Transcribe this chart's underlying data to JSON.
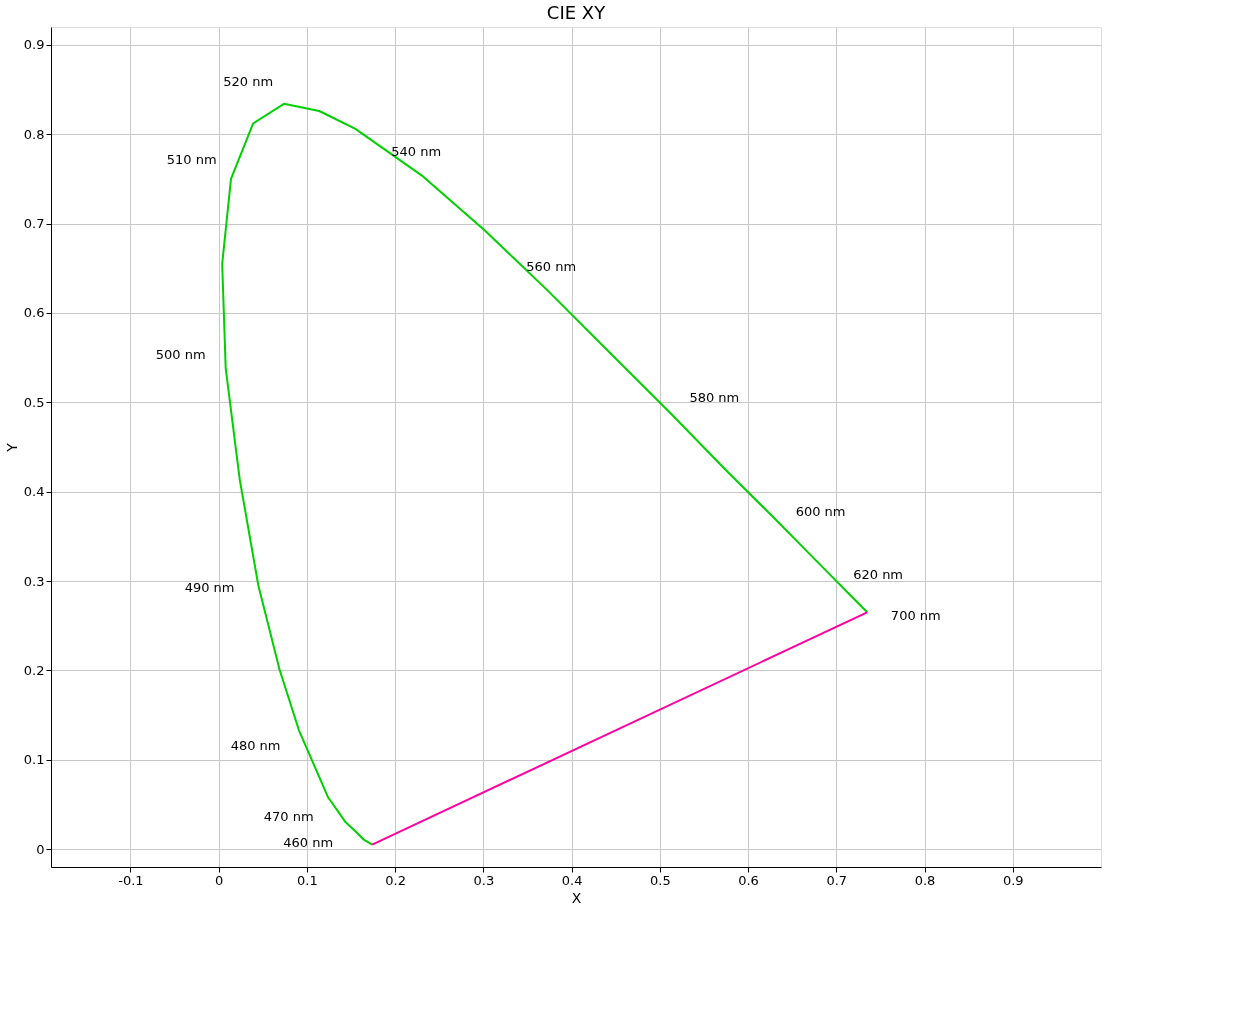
{
  "chart_data": {
    "type": "line",
    "title": "CIE XY",
    "xlabel": "X",
    "ylabel": "Y",
    "series": [
      {
        "color": "#00d000",
        "x": [
          0.174,
          0.164,
          0.157,
          0.144,
          0.124,
          0.091,
          0.069,
          0.045,
          0.024,
          0.008,
          0.004,
          0.014,
          0.039,
          0.074,
          0.114,
          0.155,
          0.23,
          0.302,
          0.373,
          0.444,
          0.513,
          0.575,
          0.627,
          0.666,
          0.692,
          0.719,
          0.735
        ],
        "values": [
          0.005,
          0.011,
          0.018,
          0.03,
          0.058,
          0.133,
          0.201,
          0.295,
          0.413,
          0.538,
          0.655,
          0.75,
          0.812,
          0.834,
          0.826,
          0.806,
          0.754,
          0.692,
          0.625,
          0.555,
          0.487,
          0.424,
          0.373,
          0.334,
          0.308,
          0.281,
          0.265
        ]
      },
      {
        "color": "#ff00a0",
        "x": [
          0.174,
          0.735
        ],
        "values": [
          0.005,
          0.265
        ]
      }
    ],
    "annotations": [
      {
        "text": "460 nm",
        "x": 0.144,
        "y": 0.03
      },
      {
        "text": "470 nm",
        "x": 0.124,
        "y": 0.058
      },
      {
        "text": "480 nm",
        "x": 0.091,
        "y": 0.133
      },
      {
        "text": "490 nm",
        "x": 0.045,
        "y": 0.295
      },
      {
        "text": "500 nm",
        "x": 0.008,
        "y": 0.538
      },
      {
        "text": "510 nm",
        "x": 0.014,
        "y": 0.75
      },
      {
        "text": "520 nm",
        "x": 0.074,
        "y": 0.834
      },
      {
        "text": "540 nm",
        "x": 0.23,
        "y": 0.754
      },
      {
        "text": "560 nm",
        "x": 0.373,
        "y": 0.625
      },
      {
        "text": "580 nm",
        "x": 0.513,
        "y": 0.487
      },
      {
        "text": "600 nm",
        "x": 0.627,
        "y": 0.373
      },
      {
        "text": "620 nm",
        "x": 0.692,
        "y": 0.308
      },
      {
        "text": "700 nm",
        "x": 0.735,
        "y": 0.265
      }
    ],
    "xlim": [
      -0.19,
      1.0
    ],
    "ylim": [
      -0.02,
      0.92
    ],
    "xticks": [
      -0.1,
      0,
      0.1,
      0.2,
      0.3,
      0.4,
      0.5,
      0.6,
      0.7,
      0.8,
      0.9
    ],
    "yticks": [
      0,
      0.1,
      0.2,
      0.3,
      0.4,
      0.5,
      0.6,
      0.7,
      0.8,
      0.9
    ],
    "grid": true,
    "marker": "none",
    "line_style": "solid"
  }
}
